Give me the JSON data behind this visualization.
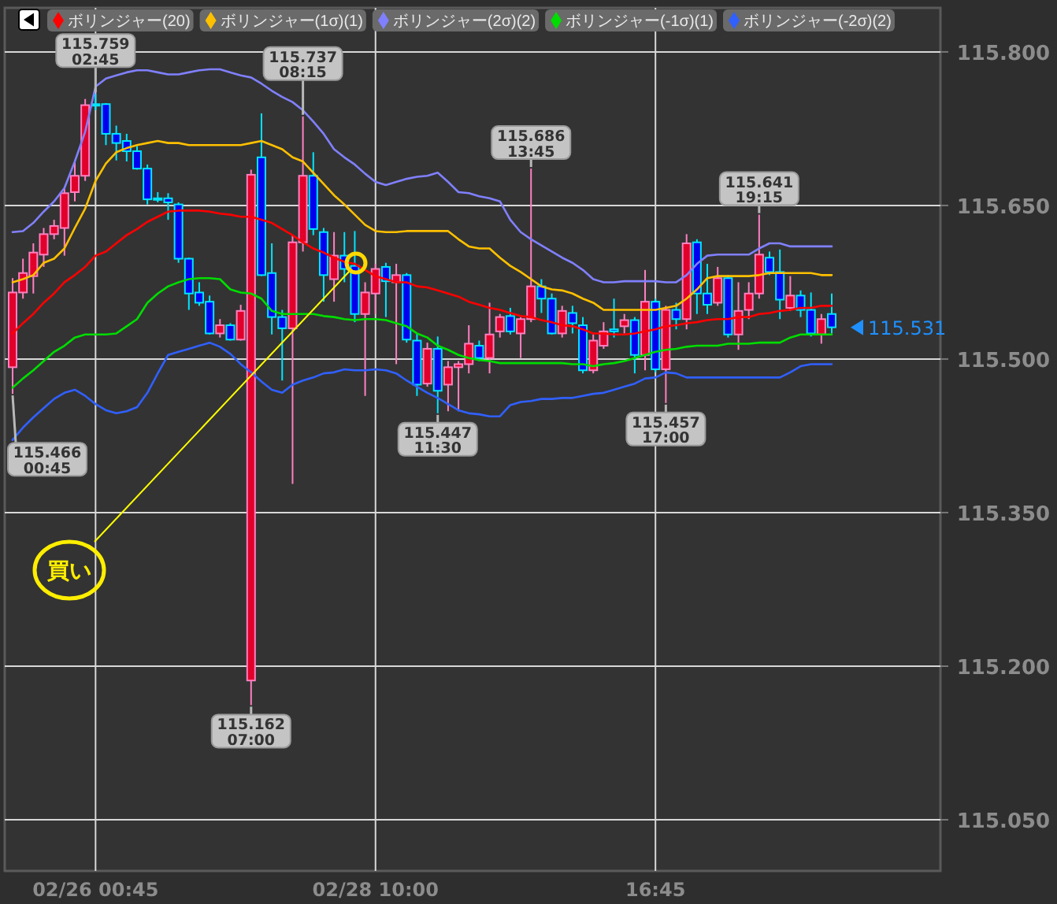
{
  "chart_data": {
    "type": "candlestick",
    "title": null,
    "categories": [
      null,
      null,
      null,
      null,
      null,
      null,
      null,
      null,
      "02/26 00:45",
      null,
      null,
      null,
      null,
      null,
      null,
      null,
      null,
      null,
      null,
      null,
      null,
      null,
      null,
      null,
      null,
      null,
      null,
      null,
      null,
      null,
      null,
      null,
      null,
      null,
      null,
      "02/28 10:00",
      null,
      null,
      null,
      null,
      null,
      null,
      null,
      null,
      null,
      null,
      null,
      null,
      null,
      null,
      null,
      null,
      null,
      null,
      null,
      null,
      null,
      null,
      null,
      null,
      null,
      null,
      "16:45",
      null,
      null,
      null,
      null,
      null,
      null,
      null,
      null,
      null,
      null,
      null,
      null,
      null,
      null,
      null,
      null,
      null
    ],
    "ohlc": [
      [
        115.492,
        115.579,
        115.466,
        115.565
      ],
      [
        115.565,
        115.598,
        115.559,
        115.584
      ],
      [
        115.581,
        115.613,
        115.564,
        115.604
      ],
      [
        115.602,
        115.628,
        115.59,
        115.622
      ],
      [
        115.622,
        115.636,
        115.617,
        115.63
      ],
      [
        115.628,
        115.667,
        115.601,
        115.662
      ],
      [
        115.663,
        115.694,
        115.654,
        115.679
      ],
      [
        115.679,
        115.754,
        115.674,
        115.748
      ],
      [
        115.749,
        115.759,
        115.743,
        115.748
      ],
      [
        115.749,
        115.75,
        115.709,
        115.72
      ],
      [
        115.72,
        115.728,
        115.694,
        115.711
      ],
      [
        115.713,
        115.72,
        115.693,
        115.703
      ],
      [
        115.703,
        115.708,
        115.685,
        115.686
      ],
      [
        115.686,
        115.69,
        115.651,
        115.656
      ],
      [
        115.657,
        115.663,
        115.653,
        115.656
      ],
      [
        115.657,
        115.662,
        115.636,
        115.653
      ],
      [
        115.651,
        115.653,
        115.594,
        115.598
      ],
      [
        115.598,
        115.599,
        115.548,
        115.564
      ],
      [
        115.565,
        115.575,
        115.552,
        115.555
      ],
      [
        115.556,
        115.562,
        115.524,
        115.525
      ],
      [
        115.525,
        115.539,
        115.521,
        115.533
      ],
      [
        115.533,
        115.535,
        115.518,
        115.519
      ],
      [
        115.519,
        115.553,
        115.518,
        115.547
      ],
      [
        115.186,
        115.685,
        115.162,
        115.68
      ],
      [
        115.697,
        115.74,
        115.581,
        115.582
      ],
      [
        115.584,
        115.613,
        115.524,
        115.541
      ],
      [
        115.541,
        115.548,
        115.479,
        115.53
      ],
      [
        115.53,
        115.621,
        115.378,
        115.614
      ],
      [
        115.614,
        115.737,
        115.605,
        115.679
      ],
      [
        115.679,
        115.702,
        115.621,
        115.627
      ],
      [
        115.624,
        115.628,
        115.556,
        115.582
      ],
      [
        115.578,
        115.624,
        115.556,
        115.601
      ],
      [
        115.601,
        115.624,
        115.575,
        115.588
      ],
      [
        115.591,
        115.625,
        115.536,
        115.544
      ],
      [
        115.544,
        115.575,
        115.464,
        115.565
      ],
      [
        115.564,
        115.593,
        115.544,
        115.588
      ],
      [
        115.59,
        115.594,
        115.541,
        115.576
      ],
      [
        115.575,
        115.593,
        115.495,
        115.582
      ],
      [
        115.582,
        115.584,
        115.516,
        115.519
      ],
      [
        115.518,
        115.525,
        115.464,
        115.475
      ],
      [
        115.476,
        115.516,
        115.473,
        115.51
      ],
      [
        115.51,
        115.522,
        115.447,
        115.469
      ],
      [
        115.475,
        115.498,
        115.449,
        115.492
      ],
      [
        115.492,
        115.498,
        115.449,
        115.495
      ],
      [
        115.495,
        115.533,
        115.486,
        115.515
      ],
      [
        115.513,
        115.518,
        115.498,
        115.501
      ],
      [
        115.501,
        115.555,
        115.486,
        115.524
      ],
      [
        115.527,
        115.544,
        115.521,
        115.541
      ],
      [
        115.542,
        115.55,
        115.524,
        115.527
      ],
      [
        115.525,
        115.541,
        115.501,
        115.539
      ],
      [
        115.539,
        115.686,
        115.536,
        115.571
      ],
      [
        115.571,
        115.578,
        115.545,
        115.559
      ],
      [
        115.559,
        115.564,
        115.524,
        115.525
      ],
      [
        115.525,
        115.552,
        115.521,
        115.547
      ],
      [
        115.545,
        115.552,
        115.525,
        115.535
      ],
      [
        115.533,
        115.541,
        115.486,
        115.489
      ],
      [
        115.489,
        115.524,
        115.486,
        115.518
      ],
      [
        115.513,
        115.536,
        115.51,
        115.527
      ],
      [
        115.529,
        115.559,
        115.521,
        115.527
      ],
      [
        115.532,
        115.544,
        115.525,
        115.538
      ],
      [
        115.538,
        115.541,
        115.486,
        115.504
      ],
      [
        115.504,
        115.587,
        115.489,
        115.556
      ],
      [
        115.556,
        115.559,
        115.487,
        115.49
      ],
      [
        115.49,
        115.552,
        115.457,
        115.548
      ],
      [
        115.548,
        115.555,
        115.529,
        115.539
      ],
      [
        115.539,
        115.622,
        115.529,
        115.613
      ],
      [
        115.614,
        115.617,
        115.544,
        115.564
      ],
      [
        115.564,
        115.593,
        115.544,
        115.553
      ],
      [
        115.555,
        115.59,
        115.552,
        115.579
      ],
      [
        115.579,
        115.582,
        115.521,
        115.524
      ],
      [
        115.524,
        115.575,
        115.509,
        115.547
      ],
      [
        115.548,
        115.575,
        115.539,
        115.564
      ],
      [
        115.564,
        115.641,
        115.559,
        115.602
      ],
      [
        115.599,
        115.605,
        115.582,
        115.585
      ],
      [
        115.585,
        115.607,
        115.539,
        115.558
      ],
      [
        115.55,
        115.581,
        115.547,
        115.562
      ],
      [
        115.562,
        115.567,
        115.541,
        115.548
      ],
      [
        115.548,
        115.565,
        115.522,
        115.525
      ],
      [
        115.524,
        115.544,
        115.515,
        115.539
      ],
      [
        115.544,
        115.564,
        115.525,
        115.531
      ]
    ],
    "series": [
      {
        "name": "ボリンジャー(20)",
        "type": "line",
        "color": "#ff0000",
        "values": [
          115.525,
          115.535,
          115.544,
          115.555,
          115.564,
          115.575,
          115.582,
          115.59,
          115.601,
          115.605,
          115.613,
          115.621,
          115.627,
          115.634,
          115.639,
          115.644,
          115.645,
          115.645,
          115.645,
          115.644,
          115.642,
          115.641,
          115.639,
          115.639,
          115.636,
          115.633,
          115.627,
          115.621,
          115.614,
          115.608,
          115.604,
          115.599,
          115.595,
          115.593,
          115.587,
          115.581,
          115.578,
          115.575,
          115.575,
          115.571,
          115.57,
          115.567,
          115.564,
          115.561,
          115.556,
          115.553,
          115.55,
          115.548,
          115.545,
          115.542,
          115.541,
          115.538,
          115.536,
          115.533,
          115.532,
          115.529,
          115.525,
          115.525,
          115.524,
          115.524,
          115.525,
          115.527,
          115.529,
          115.532,
          115.533,
          115.535,
          115.536,
          115.538,
          115.539,
          115.539,
          115.541,
          115.541,
          115.544,
          115.545,
          115.547,
          115.548,
          115.55,
          115.55,
          115.552,
          115.552
        ]
      },
      {
        "name": "ボリンジャー(1σ)(1)",
        "type": "line",
        "color": "#ffc000",
        "values": [
          115.575,
          115.578,
          115.582,
          115.594,
          115.598,
          115.608,
          115.628,
          115.647,
          115.674,
          115.691,
          115.702,
          115.706,
          115.709,
          115.711,
          115.713,
          115.711,
          115.711,
          115.709,
          115.709,
          115.709,
          115.709,
          115.709,
          115.709,
          115.711,
          115.713,
          115.709,
          115.705,
          115.697,
          115.693,
          115.682,
          115.671,
          115.66,
          115.651,
          115.641,
          115.631,
          115.625,
          115.624,
          115.624,
          115.625,
          115.625,
          115.625,
          115.625,
          115.625,
          115.617,
          115.61,
          115.608,
          115.608,
          115.599,
          115.591,
          115.585,
          115.578,
          115.571,
          115.568,
          115.567,
          115.564,
          115.559,
          115.555,
          115.548,
          115.548,
          115.548,
          115.548,
          115.548,
          115.548,
          115.55,
          115.552,
          115.559,
          115.568,
          115.579,
          115.581,
          115.581,
          115.581,
          115.581,
          115.582,
          115.584,
          115.584,
          115.584,
          115.584,
          115.584,
          115.582,
          115.582
        ]
      },
      {
        "name": "ボリンジャー(2σ)(2)",
        "type": "line",
        "color": "#8080ff",
        "values": [
          115.624,
          115.625,
          115.633,
          115.644,
          115.654,
          115.667,
          115.693,
          115.722,
          115.766,
          115.774,
          115.777,
          115.78,
          115.782,
          115.782,
          115.78,
          115.778,
          115.778,
          115.78,
          115.782,
          115.783,
          115.783,
          115.78,
          115.777,
          115.775,
          115.769,
          115.762,
          115.756,
          115.751,
          115.743,
          115.732,
          115.72,
          115.705,
          115.697,
          115.69,
          115.681,
          115.673,
          115.67,
          115.673,
          115.676,
          115.678,
          115.679,
          115.682,
          115.673,
          115.663,
          115.662,
          115.659,
          115.657,
          115.654,
          115.636,
          115.624,
          115.617,
          115.611,
          115.605,
          115.599,
          115.594,
          115.587,
          115.578,
          115.575,
          115.575,
          115.576,
          115.576,
          115.576,
          115.576,
          115.575,
          115.575,
          115.582,
          115.593,
          115.601,
          115.602,
          115.602,
          115.602,
          115.602,
          115.608,
          115.613,
          115.613,
          115.61,
          115.61,
          115.61,
          115.61,
          115.61
        ]
      },
      {
        "name": "ボリンジャー(-1σ)(1)",
        "type": "line",
        "color": "#00dd00",
        "values": [
          115.472,
          115.481,
          115.489,
          115.498,
          115.507,
          115.513,
          115.521,
          115.524,
          115.524,
          115.524,
          115.525,
          115.532,
          115.539,
          115.555,
          115.564,
          115.571,
          115.575,
          115.578,
          115.579,
          115.579,
          115.578,
          115.568,
          115.565,
          115.564,
          115.559,
          115.547,
          115.544,
          115.544,
          115.544,
          115.544,
          115.542,
          115.541,
          115.539,
          115.538,
          115.539,
          115.539,
          115.538,
          115.535,
          115.532,
          115.525,
          115.521,
          115.513,
          115.509,
          115.504,
          115.501,
          115.499,
          115.498,
          115.496,
          115.496,
          115.496,
          115.496,
          115.496,
          115.496,
          115.496,
          115.495,
          115.495,
          115.493,
          115.495,
          115.496,
          115.498,
          115.501,
          115.504,
          115.507,
          115.509,
          115.51,
          115.512,
          115.513,
          115.513,
          115.513,
          115.515,
          115.515,
          115.515,
          115.516,
          115.516,
          115.516,
          115.521,
          115.524,
          115.524,
          115.524,
          115.524
        ]
      },
      {
        "name": "ボリンジャー(-2σ)(2)",
        "type": "line",
        "color": "#3060ff",
        "values": [
          115.421,
          115.433,
          115.443,
          115.452,
          115.461,
          115.467,
          115.47,
          115.464,
          115.456,
          115.45,
          115.447,
          115.449,
          115.453,
          115.467,
          115.486,
          115.504,
          115.507,
          115.51,
          115.513,
          115.516,
          115.512,
          115.505,
          115.495,
          115.487,
          115.478,
          115.47,
          115.467,
          115.475,
          115.479,
          115.482,
          115.486,
          115.487,
          115.49,
          115.489,
          115.489,
          115.49,
          115.489,
          115.486,
          115.479,
          115.473,
          115.467,
          115.462,
          115.456,
          115.45,
          115.447,
          115.446,
          115.444,
          115.444,
          115.455,
          115.458,
          115.459,
          115.461,
          115.461,
          115.462,
          115.462,
          115.464,
          115.466,
          115.467,
          115.47,
          115.473,
          115.476,
          115.481,
          115.482,
          115.487,
          115.486,
          115.482,
          115.482,
          115.482,
          115.482,
          115.482,
          115.482,
          115.482,
          115.482,
          115.482,
          115.482,
          115.487,
          115.493,
          115.495,
          115.495,
          115.495
        ]
      }
    ],
    "ylim": [
      115.0,
      115.843
    ],
    "yticks": [
      {
        "value": 115.05,
        "label": "115.050"
      },
      {
        "value": 115.2,
        "label": "115.200"
      },
      {
        "value": 115.35,
        "label": "115.350"
      },
      {
        "value": 115.5,
        "label": "115.500"
      },
      {
        "value": 115.65,
        "label": "115.650"
      },
      {
        "value": 115.8,
        "label": "115.800"
      }
    ],
    "grid": true,
    "legend": "top",
    "annotations": [
      {
        "text": "115.759 02:45",
        "y": 115.759
      },
      "115.466 00:45",
      {
        "text": "115.162 07:00",
        "y": 115.162
      },
      {
        "text": "115.737 08:15",
        "y": 115.737
      },
      {
        "text": "115.447 11:30",
        "y": 115.447
      },
      {
        "text": "115.686 13:45",
        "y": 115.686
      },
      {
        "text": "115.457 17:00",
        "y": 115.457
      },
      {
        "text": "115.641 19:15",
        "y": 115.641
      },
      "115.531",
      "買い"
    ]
  }
}
